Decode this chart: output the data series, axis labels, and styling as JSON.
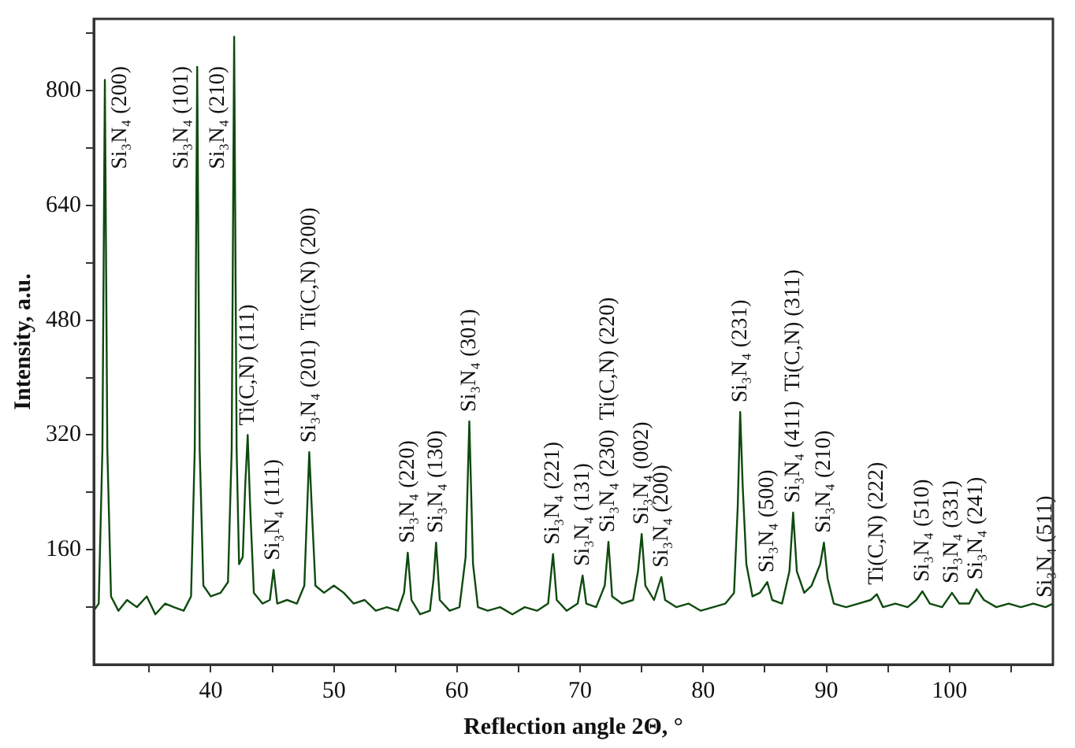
{
  "chart_data": {
    "type": "line",
    "xlabel": "Reflection angle 2Θ, °",
    "ylabel": "Intensity, a.u.",
    "xlim": [
      30.5,
      108.4
    ],
    "ylim": [
      0,
      900
    ],
    "xticks": [
      {
        "value": 35,
        "label": null
      },
      40,
      {
        "value": 45,
        "label": null
      },
      50,
      {
        "value": 55,
        "label": null
      },
      60,
      {
        "value": 65,
        "label": null
      },
      70,
      {
        "value": 75,
        "label": null
      },
      80,
      {
        "value": 85,
        "label": null
      },
      90,
      {
        "value": 95,
        "label": null
      },
      100,
      {
        "value": 105,
        "label": null
      }
    ],
    "yticks": [
      {
        "value": 80,
        "label": null
      },
      160,
      {
        "value": 240,
        "label": null
      },
      320,
      {
        "value": 400,
        "label": null
      },
      480,
      {
        "value": 560,
        "label": null
      },
      640,
      {
        "value": 720,
        "label": null
      },
      800,
      {
        "value": 880,
        "label": null
      }
    ],
    "grid": false,
    "legend": false,
    "marker": "none",
    "line_style": "solid",
    "series": [
      {
        "color": "#0f4a0f",
        "x": [
          30.5,
          30.9,
          31.2,
          31.4,
          31.6,
          31.9,
          32.5,
          33.2,
          34,
          34.8,
          35.5,
          36.3,
          37,
          37.8,
          38.4,
          38.7,
          38.9,
          39.1,
          39.4,
          40,
          40.8,
          41.4,
          41.7,
          41.9,
          42.1,
          42.3,
          42.6,
          42.8,
          43.0,
          43.2,
          43.5,
          44.2,
          44.8,
          45.1,
          45.4,
          46.2,
          47,
          47.6,
          47.9,
          48.0,
          48.2,
          48.5,
          49.2,
          50,
          50.8,
          51.6,
          52.5,
          53.4,
          54.3,
          55.2,
          55.7,
          56.0,
          56.3,
          57,
          57.8,
          58.1,
          58.3,
          58.6,
          59.4,
          60.2,
          60.7,
          61.0,
          61.3,
          61.7,
          62.5,
          63.5,
          64.5,
          65.5,
          66.5,
          67.4,
          67.8,
          68.1,
          68.9,
          69.8,
          70.2,
          70.5,
          71.3,
          72.0,
          72.3,
          72.6,
          73.4,
          74.3,
          74.7,
          75.0,
          75.3,
          76.0,
          76.6,
          76.9,
          77.8,
          78.8,
          79.8,
          80.8,
          81.8,
          82.5,
          82.8,
          83.0,
          83.2,
          83.5,
          84.0,
          84.6,
          85.2,
          85.6,
          86.4,
          87.0,
          87.3,
          87.6,
          88.2,
          88.8,
          89.5,
          89.8,
          90.1,
          90.6,
          91.6,
          92.6,
          93.6,
          94.1,
          94.6,
          95.6,
          96.6,
          97.3,
          97.8,
          98.4,
          99.4,
          100.2,
          100.8,
          101.6,
          102.2,
          102.8,
          103.8,
          104.8,
          105.8,
          106.8,
          107.8,
          108.4
        ],
        "values": [
          75,
          85,
          300,
          815,
          300,
          95,
          75,
          90,
          80,
          95,
          70,
          85,
          80,
          75,
          95,
          300,
          833,
          300,
          110,
          95,
          100,
          115,
          300,
          875,
          300,
          140,
          150,
          250,
          320,
          220,
          100,
          85,
          90,
          132,
          85,
          90,
          85,
          110,
          250,
          296,
          220,
          110,
          100,
          110,
          100,
          85,
          90,
          75,
          80,
          75,
          100,
          156,
          90,
          70,
          75,
          120,
          170,
          90,
          75,
          80,
          150,
          339,
          140,
          80,
          75,
          80,
          70,
          80,
          75,
          85,
          154,
          90,
          75,
          85,
          124,
          85,
          80,
          110,
          171,
          95,
          85,
          90,
          130,
          182,
          110,
          90,
          122,
          90,
          80,
          85,
          75,
          80,
          85,
          100,
          220,
          352,
          250,
          140,
          95,
          100,
          115,
          90,
          85,
          130,
          212,
          130,
          100,
          110,
          140,
          170,
          120,
          85,
          80,
          85,
          90,
          98,
          80,
          85,
          80,
          90,
          102,
          85,
          80,
          100,
          85,
          85,
          105,
          90,
          80,
          85,
          80,
          85,
          80,
          85
        ]
      }
    ],
    "annotations": [
      {
        "text": "Si₃N₄ (200)",
        "x": 31.4,
        "y": 815
      },
      {
        "text": "Si₃N₄ (101)",
        "x": 38.9,
        "y": 833
      },
      {
        "text": "Si₃N₄ (210)",
        "x": 41.9,
        "y": 875
      },
      {
        "text": "Ti(C,N) (111)",
        "x": 43.0,
        "y": 320
      },
      {
        "text": "Si₃N₄ (111)",
        "x": 45.1,
        "y": 132
      },
      {
        "text": "Si₃N₄ (201)",
        "x": 48.0,
        "y": 296
      },
      "Ti(C,N) (200)",
      {
        "text": "Si₃N₄ (220)",
        "x": 56.0,
        "y": 156
      },
      {
        "text": "Si₃N₄ (130)",
        "x": 58.3,
        "y": 170
      },
      {
        "text": "Si₃N₄ (301)",
        "x": 61.0,
        "y": 339
      },
      {
        "text": "Si₃N₄ (221)",
        "x": 67.8,
        "y": 154
      },
      {
        "text": "Si₃N₄ (131)",
        "x": 70.2,
        "y": 124
      },
      {
        "text": "Si₃N₄ (230)",
        "x": 72.3,
        "y": 171
      },
      "Ti(C,N) (220)",
      {
        "text": "Si₃N₄ (002)",
        "x": 75.0,
        "y": 182
      },
      {
        "text": "Si₃N₄ (200)",
        "x": 76.6,
        "y": 122
      },
      {
        "text": "Si₃N₄ (231)",
        "x": 83.0,
        "y": 352
      },
      {
        "text": "Si₃N₄ (500)",
        "x": 85.2,
        "y": 115
      },
      {
        "text": "Si₃N₄ (411)",
        "x": 87.3,
        "y": 212
      },
      "Ti(C,N) (311)",
      {
        "text": "Si₃N₄ (210)",
        "x": 89.8,
        "y": 170
      },
      {
        "text": "Ti(C,N) (222)",
        "x": 94.1,
        "y": 98
      },
      {
        "text": "Si₃N₄ (510)",
        "x": 97.8,
        "y": 102
      },
      {
        "text": "Si₃N₄ (331)",
        "x": 100.2,
        "y": 100
      },
      {
        "text": "Si₃N₄ (241)",
        "x": 102.2,
        "y": 105
      },
      {
        "text": "Si₃N₄ (511)",
        "x": 107.8,
        "y": 80
      }
    ]
  }
}
